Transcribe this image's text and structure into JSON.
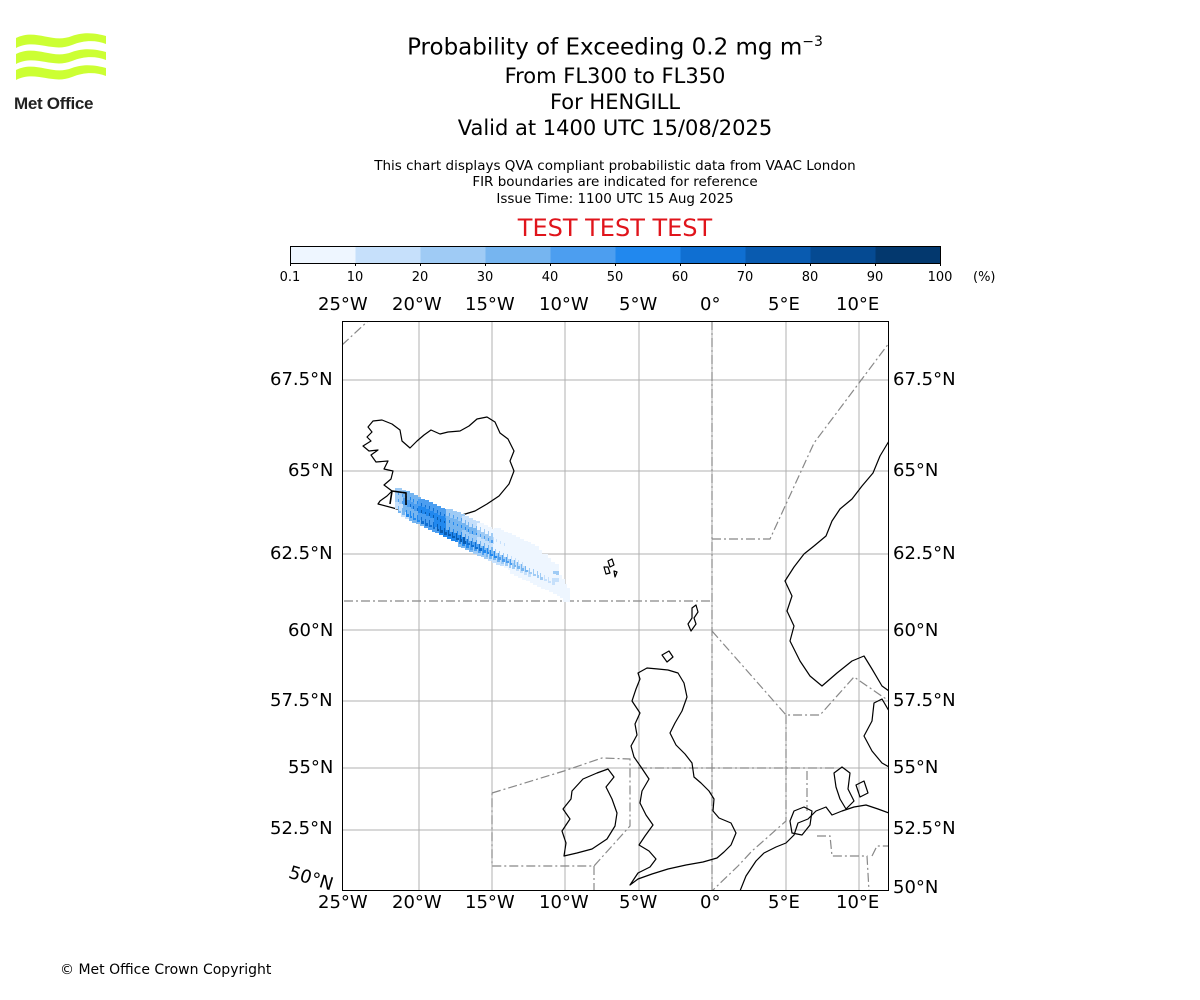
{
  "logo": {
    "text": "Met Office",
    "icon": "met-office-wave-logo",
    "color": "#ccff33"
  },
  "title": {
    "main": "Probability of Exceeding 0.2 mg m",
    "exponent": "−3"
  },
  "subtitles": [
    "From FL300 to FL350",
    "For HENGILL",
    "Valid at 1400 UTC 15/08/2025"
  ],
  "info_lines": [
    "This chart displays QVA compliant probabilistic data from VAAC London",
    "FIR boundaries are indicated for reference",
    "Issue Time: 1100 UTC 15 Aug 2025"
  ],
  "test_banner": "TEST TEST TEST",
  "colorbar": {
    "ticks": [
      "0.1",
      "10",
      "20",
      "30",
      "40",
      "50",
      "60",
      "70",
      "80",
      "90",
      "100"
    ],
    "unit": "(%)",
    "colors": [
      "#eef6ff",
      "#c6e0fb",
      "#9fcbf5",
      "#76b5f0",
      "#4c9ef0",
      "#2188ee",
      "#0f6fd2",
      "#095bb0",
      "#054a92",
      "#03386e",
      "#012650"
    ]
  },
  "map": {
    "lon_labels": [
      "25°W",
      "20°W",
      "15°W",
      "10°W",
      "5°W",
      "0°",
      "5°E",
      "10°E"
    ],
    "lat_labels_left": [
      "67.5°N",
      "65°N",
      "62.5°N",
      "60°N",
      "57.5°N",
      "55°N",
      "52.5°N"
    ],
    "lat_labels_right": [
      "67.5°N",
      "65°N",
      "62.5°N",
      "60°N",
      "57.5°N",
      "55°N",
      "52.5°N",
      "50°N"
    ],
    "corner_label": "50°N",
    "plume_levels": [
      [
        4,
        5,
        6,
        6,
        6,
        5,
        4,
        3,
        2,
        1,
        0
      ],
      [
        4,
        6,
        7,
        7,
        7,
        7,
        6,
        5,
        4,
        3,
        2
      ],
      [
        3,
        5,
        6,
        7,
        7,
        6,
        5,
        4,
        3,
        2,
        1
      ]
    ]
  },
  "copyright": "© Met Office Crown Copyright"
}
